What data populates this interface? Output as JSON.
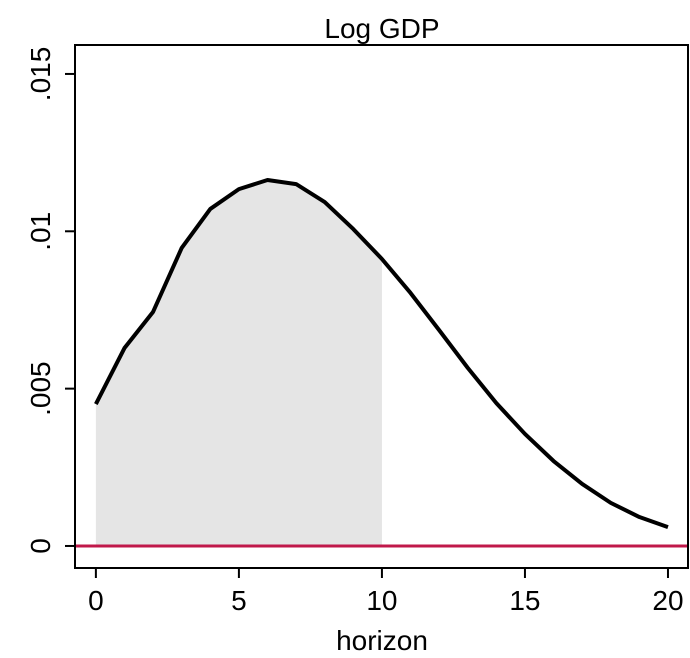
{
  "chart_data": {
    "type": "line",
    "title": "Log GDP",
    "x_label": "horizon",
    "x": [
      0,
      1,
      2,
      3,
      4,
      5,
      6,
      7,
      8,
      9,
      10,
      11,
      12,
      13,
      14,
      15,
      16,
      17,
      18,
      19,
      20
    ],
    "series": [
      {
        "color": "#000000",
        "values": [
          0.00451,
          0.00629,
          0.00744,
          0.00947,
          0.01071,
          0.01134,
          0.01163,
          0.0115,
          0.01093,
          0.01007,
          0.00912,
          0.00804,
          0.00686,
          0.00566,
          0.00454,
          0.00356,
          0.0027,
          0.00197,
          0.00137,
          0.00092,
          0.0006
        ]
      }
    ],
    "shaded_range": [
      0,
      10
    ],
    "shade_color": "#e5e5e5",
    "hline": {
      "value": 0,
      "color": "#c0184a"
    },
    "xlim": [
      -0.73,
      20.7
    ],
    "xticks": [
      0,
      5,
      10,
      15,
      20
    ],
    "ylim": [
      -0.0007,
      0.01592
    ],
    "yticks": [
      0,
      {
        "value": 0.005,
        "label": ".005"
      },
      {
        "value": 0.01,
        "label": ".01"
      },
      {
        "value": 0.015,
        "label": ".015"
      }
    ]
  }
}
